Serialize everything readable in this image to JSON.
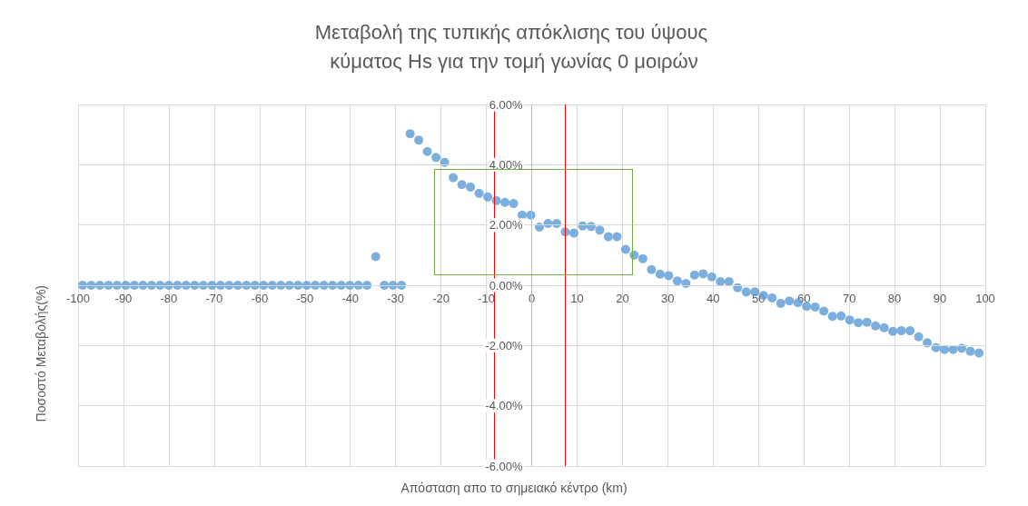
{
  "chart_data": {
    "type": "scatter",
    "title": "Μεταβολή της τυπικής απόκλισης του ύψους κύματος Hs για την τομή γωνίας 0 μοιρών",
    "xlabel": "Απόσταση απο το σημειακό κέντρο (km)",
    "ylabel": "Ποσοστό Μεταβολής(%)",
    "x": [
      -99,
      -97.1,
      -95.2,
      -93.3,
      -91.4,
      -89.5,
      -87.6,
      -85.7,
      -83.8,
      -81.9,
      -80,
      -78.1,
      -76.2,
      -74.3,
      -72.4,
      -70.5,
      -68.6,
      -66.7,
      -64.8,
      -62.9,
      -61,
      -59.1,
      -57.2,
      -55.3,
      -53.4,
      -51.5,
      -49.6,
      -47.7,
      -45.8,
      -43.9,
      -42,
      -40.1,
      -38.2,
      -36.3,
      -34.4,
      -32.5,
      -30.6,
      -28.7,
      -26.8,
      -24.9,
      -23,
      -21.1,
      -19.2,
      -17.3,
      -15.4,
      -13.5,
      -11.6,
      -9.7,
      -7.8,
      -5.9,
      -4,
      -2.1,
      -0.2,
      1.7,
      3.6,
      5.5,
      7.4,
      9.3,
      11.2,
      13.1,
      15,
      16.9,
      18.8,
      20.7,
      22.6,
      24.5,
      26.4,
      28.3,
      30.2,
      32.1,
      34,
      35.9,
      37.8,
      39.7,
      41.6,
      43.5,
      45.4,
      47.3,
      49.2,
      51.1,
      53,
      54.9,
      56.8,
      58.7,
      60.6,
      62.5,
      64.4,
      66.3,
      68.2,
      70.1,
      72,
      73.9,
      75.8,
      77.7,
      79.6,
      81.5,
      83.4,
      85.3,
      87.2,
      89.1,
      91,
      92.9,
      94.8,
      96.7,
      98.6
    ],
    "series": [
      {
        "color": "#5b9bd5",
        "values": [
          0,
          0,
          0,
          0,
          0,
          0,
          0,
          0,
          0,
          0,
          0,
          0,
          0,
          0,
          0,
          0,
          0,
          0,
          0,
          0,
          0,
          0,
          0,
          0,
          0,
          0,
          0,
          0,
          0,
          0,
          0,
          0,
          0,
          0,
          0.95,
          0,
          0,
          0,
          5.03,
          4.82,
          4.44,
          4.24,
          4.08,
          3.57,
          3.34,
          3.26,
          3.05,
          2.93,
          2.81,
          2.75,
          2.71,
          2.33,
          2.33,
          1.93,
          2.05,
          2.05,
          1.77,
          1.73,
          1.97,
          1.95,
          1.83,
          1.61,
          1.61,
          1.19,
          1.0,
          0.88,
          0.52,
          0.37,
          0.32,
          0.14,
          0.06,
          0.34,
          0.38,
          0.28,
          0.12,
          0.12,
          -0.08,
          -0.22,
          -0.22,
          -0.34,
          -0.42,
          -0.6,
          -0.52,
          -0.58,
          -0.7,
          -0.72,
          -0.86,
          -1.03,
          -1.02,
          -1.15,
          -1.24,
          -1.23,
          -1.35,
          -1.41,
          -1.53,
          -1.51,
          -1.51,
          -1.71,
          -1.91,
          -2.07,
          -2.13,
          -2.13,
          -2.09,
          -2.19,
          -2.25
        ]
      }
    ],
    "xlim": [
      -100,
      100
    ],
    "xticks": [
      -100,
      -90,
      -80,
      -70,
      -60,
      -50,
      -40,
      -30,
      -20,
      -10,
      0,
      10,
      20,
      30,
      40,
      50,
      60,
      70,
      80,
      90,
      100
    ],
    "ylim": [
      -6,
      6
    ],
    "yticks": [
      {
        "value": -6,
        "label": "-6.00%"
      },
      {
        "value": -4,
        "label": "-4.00%"
      },
      {
        "value": -2,
        "label": "-2.00%"
      },
      {
        "value": 0,
        "label": "0.00%"
      },
      {
        "value": 2,
        "label": "2.00%"
      },
      {
        "value": 4,
        "label": "4.00%"
      },
      {
        "value": 6,
        "label": "6.00%"
      }
    ],
    "ref_lines": [
      {
        "axis": "x",
        "value": -8.3,
        "color": "#ff0000"
      },
      {
        "axis": "x",
        "value": 7.3,
        "color": "#ff0000"
      }
    ],
    "grid": true,
    "marker": "circle"
  }
}
